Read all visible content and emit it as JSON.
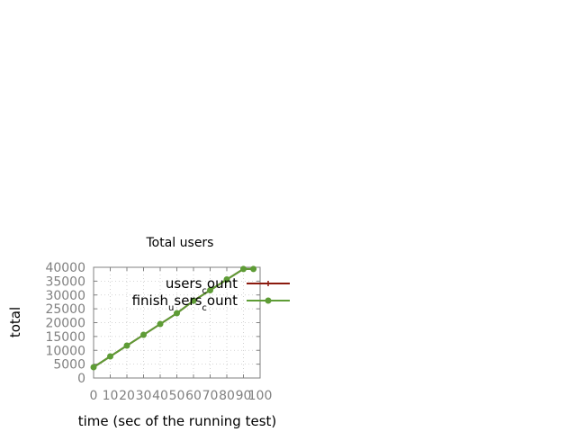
{
  "chart_data": {
    "type": "line",
    "title": "Total users",
    "xlabel": "time (sec of the running test)",
    "ylabel": "total",
    "xlim": [
      0,
      100
    ],
    "ylim": [
      0,
      40000
    ],
    "xticks": [
      0,
      10,
      20,
      30,
      40,
      50,
      60,
      70,
      80,
      90,
      100
    ],
    "yticks": [
      0,
      5000,
      10000,
      15000,
      20000,
      25000,
      30000,
      35000,
      40000
    ],
    "grid": true,
    "legend_position": "top-right",
    "series": [
      {
        "name": "users_count",
        "legend_parts": [
          "users",
          "c",
          "ount"
        ],
        "color": "#8b1a0e",
        "marker": "plus",
        "x": [
          0,
          10,
          20,
          30,
          40,
          50,
          60,
          70,
          80,
          90,
          96
        ],
        "values": [
          3900,
          7800,
          11700,
          15600,
          19500,
          23400,
          27900,
          31700,
          35600,
          39400,
          39400
        ]
      },
      {
        "name": "finish_users_count",
        "legend_parts": [
          "finish",
          "u",
          "sers",
          "c",
          "ount"
        ],
        "color": "#5e9c36",
        "marker": "circle",
        "x": [
          0,
          10,
          20,
          30,
          40,
          50,
          60,
          70,
          80,
          90,
          96
        ],
        "values": [
          3900,
          7800,
          11700,
          15600,
          19500,
          23400,
          27900,
          31700,
          35600,
          39400,
          39400
        ]
      }
    ]
  }
}
